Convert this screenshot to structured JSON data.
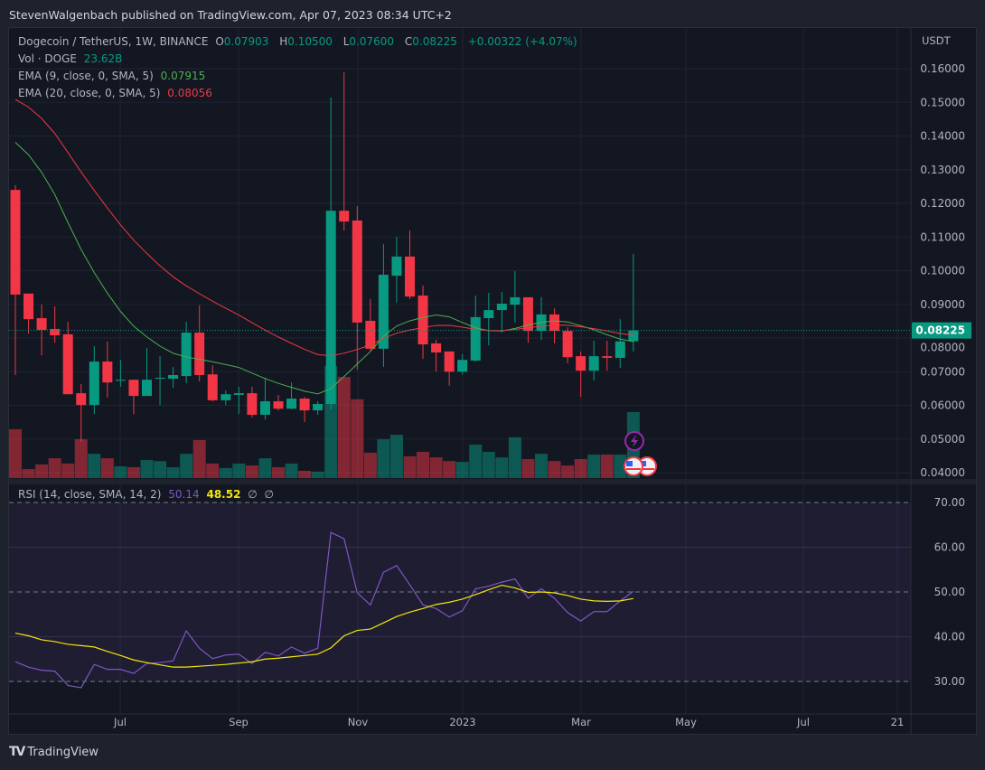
{
  "publisher_line": "StevenWalgenbach published on TradingView.com, Apr 07, 2023 08:34 UTC+2",
  "legend": {
    "symbol": "Dogecoin / TetherUS, 1W, BINANCE",
    "open_label": "O",
    "open": "0.07903",
    "high_label": "H",
    "high": "0.10500",
    "low_label": "L",
    "low": "0.07600",
    "close_label": "C",
    "close": "0.08225",
    "change": "+0.00322 (+4.07%)",
    "vol_label": "Vol · DOGE",
    "vol_value": "23.62B",
    "ema9_label": "EMA (9, close, 0, SMA, 5)",
    "ema9_value": "0.07915",
    "ema20_label": "EMA (20, close, 0, SMA, 5)",
    "ema20_value": "0.08056",
    "rsi_label": "RSI (14, close, SMA, 14, 2)",
    "rsi_value": "50.14",
    "rsi_ma_value": "48.52",
    "rsi_extra1": "∅",
    "rsi_extra2": "∅"
  },
  "price_axis": {
    "unit": "USDT",
    "ticks": [
      "0.16000",
      "0.15000",
      "0.14000",
      "0.13000",
      "0.12000",
      "0.11000",
      "0.10000",
      "0.09000",
      "0.08000",
      "0.07000",
      "0.06000",
      "0.05000",
      "0.04000"
    ],
    "last_price": "0.08225"
  },
  "rsi_axis": {
    "ticks": [
      "70.00",
      "60.00",
      "50.00",
      "40.00",
      "30.00"
    ]
  },
  "time_axis": {
    "labels": [
      "Jul",
      "Sep",
      "Nov",
      "2023",
      "Mar",
      "May",
      "Jul",
      "21"
    ]
  },
  "footer": {
    "brand": "TradingView",
    "logo": "17"
  },
  "colors": {
    "up": "#089981",
    "down": "#f23645",
    "ema9": "#4caf50",
    "ema20": "#f23645",
    "rsi": "#7e57c2",
    "rsi_ma": "#f5e50a",
    "background": "#131722"
  },
  "icons": [
    "lightning-event-icon",
    "us-flag-event-icon",
    "us-flag-event-icon"
  ],
  "chart_data": [
    {
      "type": "candlestick",
      "title": "Dogecoin / TetherUS, 1W, BINANCE",
      "ylabel": "USDT",
      "ylim": [
        0.04,
        0.16
      ],
      "ohlc": [
        [
          0.124,
          0.1254,
          0.069,
          0.0929
        ],
        [
          0.0932,
          0.0932,
          0.0813,
          0.0856
        ],
        [
          0.0859,
          0.0899,
          0.0749,
          0.0824
        ],
        [
          0.0827,
          0.0894,
          0.0786,
          0.0808
        ],
        [
          0.0811,
          0.0848,
          0.0633,
          0.0633
        ],
        [
          0.0636,
          0.0663,
          0.0491,
          0.0601
        ],
        [
          0.0601,
          0.0776,
          0.0574,
          0.073
        ],
        [
          0.073,
          0.0789,
          0.0623,
          0.0668
        ],
        [
          0.0673,
          0.0735,
          0.0655,
          0.0676
        ],
        [
          0.0676,
          0.0676,
          0.0574,
          0.0628
        ],
        [
          0.0628,
          0.077,
          0.0628,
          0.0676
        ],
        [
          0.0679,
          0.0746,
          0.0601,
          0.0682
        ],
        [
          0.0679,
          0.0714,
          0.0652,
          0.069
        ],
        [
          0.0687,
          0.0848,
          0.0666,
          0.0816
        ],
        [
          0.0816,
          0.0897,
          0.0671,
          0.069
        ],
        [
          0.0692,
          0.0719,
          0.0612,
          0.0615
        ],
        [
          0.0615,
          0.0644,
          0.06,
          0.0633
        ],
        [
          0.0631,
          0.0655,
          0.0574,
          0.0636
        ],
        [
          0.0636,
          0.0655,
          0.0564,
          0.0572
        ],
        [
          0.0572,
          0.0682,
          0.0558,
          0.0612
        ],
        [
          0.0612,
          0.0631,
          0.0585,
          0.059
        ],
        [
          0.059,
          0.0668,
          0.0588,
          0.062
        ],
        [
          0.062,
          0.0625,
          0.055,
          0.0585
        ],
        [
          0.0585,
          0.0612,
          0.0572,
          0.0604
        ],
        [
          0.0604,
          0.1514,
          0.0588,
          0.1178
        ],
        [
          0.1178,
          0.1589,
          0.1119,
          0.1146
        ],
        [
          0.1149,
          0.1192,
          0.0706,
          0.0846
        ],
        [
          0.0851,
          0.0916,
          0.0762,
          0.0768
        ],
        [
          0.0768,
          0.1079,
          0.0714,
          0.0988
        ],
        [
          0.0985,
          0.1101,
          0.0905,
          0.1042
        ],
        [
          0.1042,
          0.1119,
          0.0916,
          0.0923
        ],
        [
          0.0926,
          0.0956,
          0.0738,
          0.0781
        ],
        [
          0.0784,
          0.0795,
          0.07,
          0.0757
        ],
        [
          0.076,
          0.076,
          0.0658,
          0.07
        ],
        [
          0.07,
          0.0752,
          0.0692,
          0.0735
        ],
        [
          0.0733,
          0.0926,
          0.073,
          0.0862
        ],
        [
          0.0859,
          0.0934,
          0.0778,
          0.0883
        ],
        [
          0.0883,
          0.0937,
          0.0816,
          0.0902
        ],
        [
          0.0899,
          0.0999,
          0.0846,
          0.0921
        ],
        [
          0.0921,
          0.0921,
          0.0786,
          0.0821
        ],
        [
          0.0821,
          0.0921,
          0.0795,
          0.087
        ],
        [
          0.087,
          0.0888,
          0.0784,
          0.0821
        ],
        [
          0.0821,
          0.0832,
          0.0725,
          0.0743
        ],
        [
          0.0746,
          0.076,
          0.0625,
          0.0703
        ],
        [
          0.0703,
          0.0792,
          0.0674,
          0.0746
        ],
        [
          0.0746,
          0.0792,
          0.0703,
          0.0741
        ],
        [
          0.0741,
          0.0856,
          0.0711,
          0.079
        ],
        [
          0.07903,
          0.105,
          0.076,
          0.08225
        ]
      ],
      "volume_billions": [
        17.5,
        3.2,
        4.9,
        7.1,
        5.2,
        13.9,
        8.7,
        7.1,
        4.2,
        3.9,
        6.5,
        6.1,
        3.9,
        8.7,
        13.6,
        5.2,
        3.6,
        5.2,
        4.5,
        7.1,
        3.9,
        5.2,
        2.6,
        2.3,
        40.1,
        36.2,
        28.2,
        9.1,
        13.9,
        15.5,
        7.8,
        9.4,
        7.4,
        6.1,
        5.8,
        12.0,
        9.4,
        7.4,
        14.6,
        6.8,
        8.7,
        6.1,
        4.5,
        6.8,
        8.4,
        8.4,
        8.4,
        23.62
      ],
      "ema_periods": [
        9,
        20
      ],
      "last_price_line": 0.08225
    },
    {
      "type": "line",
      "title": "RSI (14, close, SMA, 14, 2)",
      "ylim": [
        25,
        72
      ],
      "bands": [
        30,
        50,
        70
      ],
      "series": [
        {
          "name": "RSI",
          "values": [
            34.4,
            33.2,
            32.5,
            32.3,
            29.1,
            28.6,
            33.8,
            32.7,
            32.7,
            31.8,
            34.0,
            34.2,
            34.6,
            41.3,
            37.4,
            35.1,
            35.9,
            36.1,
            34.0,
            36.5,
            35.7,
            37.7,
            36.3,
            37.4,
            63.3,
            61.9,
            49.8,
            47.1,
            54.4,
            55.9,
            51.6,
            47.1,
            46.3,
            44.4,
            45.8,
            50.7,
            51.3,
            52.2,
            52.9,
            48.6,
            50.7,
            48.6,
            45.4,
            43.5,
            45.6,
            45.6,
            48.0,
            50.14
          ]
        },
        {
          "name": "SMA",
          "values": [
            40.8,
            40.2,
            39.3,
            38.9,
            38.3,
            38.0,
            37.7,
            36.7,
            35.8,
            34.8,
            34.2,
            33.7,
            33.2,
            33.2,
            33.4,
            33.6,
            33.8,
            34.1,
            34.4,
            35.0,
            35.2,
            35.5,
            35.8,
            36.1,
            37.5,
            40.2,
            41.4,
            41.7,
            43.1,
            44.5,
            45.5,
            46.3,
            47.2,
            47.7,
            48.4,
            49.4,
            50.5,
            51.5,
            50.9,
            49.9,
            50.0,
            49.8,
            49.2,
            48.4,
            48.0,
            47.9,
            48.0,
            48.52
          ]
        }
      ]
    }
  ]
}
